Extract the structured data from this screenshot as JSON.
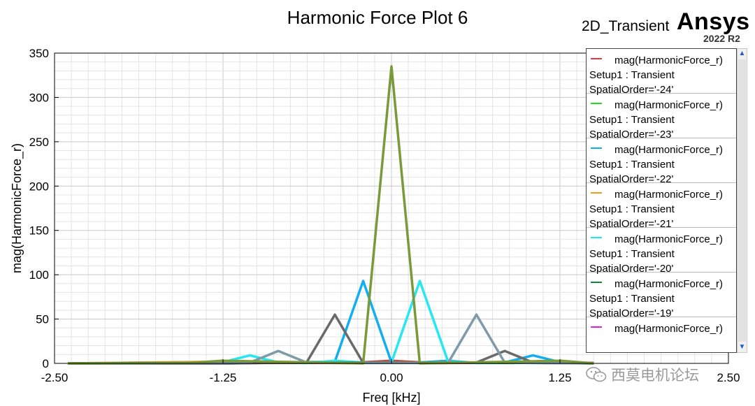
{
  "header": {
    "title": "Harmonic Force Plot 6",
    "subtitle": "2D_Transient",
    "brand": "Ansys",
    "version": "2022 R2"
  },
  "watermark": {
    "text": "西莫电机论坛"
  },
  "legend": {
    "entries": [
      {
        "line1": "mag(HarmonicForce_r)",
        "line2": "Setup1 : Transient",
        "line3": "SpatialOrder='-24'",
        "color": "#e8383d"
      },
      {
        "line1": "mag(HarmonicForce_r)",
        "line2": "Setup1 : Transient",
        "line3": "SpatialOrder='-23'",
        "color": "#22dd22"
      },
      {
        "line1": "mag(HarmonicForce_r)",
        "line2": "Setup1 : Transient",
        "line3": "SpatialOrder='-22'",
        "color": "#12aef2"
      },
      {
        "line1": "mag(HarmonicForce_r)",
        "line2": "Setup1 : Transient",
        "line3": "SpatialOrder='-21'",
        "color": "#f59b1c"
      },
      {
        "line1": "mag(HarmonicForce_r)",
        "line2": "Setup1 : Transient",
        "line3": "SpatialOrder='-20'",
        "color": "#25e8f2"
      },
      {
        "line1": "mag(HarmonicForce_r)",
        "line2": "Setup1 : Transient",
        "line3": "SpatialOrder='-19'",
        "color": "#0c8a3a"
      },
      {
        "line1": "mag(HarmonicForce_r)",
        "line2": "",
        "line3": "",
        "color": "#dd22dd"
      }
    ]
  },
  "chart_data": {
    "type": "line",
    "title": "Harmonic Force Plot 6",
    "xlabel": "Freq [kHz]",
    "ylabel": "mag(HarmonicForce_r)",
    "xlim": [
      -2.5,
      2.5
    ],
    "ylim": [
      0,
      350
    ],
    "xticks": [
      -2.5,
      -1.25,
      0.0,
      1.25,
      2.5
    ],
    "xtick_labels": [
      "-2.50",
      "-1.25",
      "0.00",
      "1.25",
      "2.50"
    ],
    "yticks": [
      0,
      50,
      100,
      150,
      200,
      250,
      300,
      350
    ],
    "ytick_labels": [
      "0",
      "50",
      "100",
      "150",
      "200",
      "250",
      "300",
      "350"
    ],
    "grid": true,
    "legend_position": "right",
    "series": [
      {
        "name": "SpatialOrder='-24'",
        "color": "#e8383d",
        "x": [
          -2.4,
          -2.1,
          -1.8,
          -1.5,
          -1.2,
          -0.9,
          -0.6,
          -0.3,
          0.0,
          0.3,
          0.6,
          0.9,
          1.2,
          1.5
        ],
        "y": [
          0,
          0.3,
          1,
          0.5,
          1.5,
          0.5,
          0.5,
          0.5,
          3,
          0.5,
          0.5,
          0.5,
          1.5,
          0.5
        ]
      },
      {
        "name": "SpatialOrder='-22'",
        "color": "#12aef2",
        "x": [
          -2.4,
          -1.2,
          -0.42,
          -0.21,
          0.0,
          0.21,
          0.42,
          0.63,
          0.84,
          1.05,
          1.26,
          1.5
        ],
        "y": [
          0,
          0,
          2,
          93,
          1,
          1,
          3,
          0.5,
          1,
          9,
          1,
          0
        ]
      },
      {
        "name": "SpatialOrder='-21'",
        "color": "#f59b1c",
        "x": [
          -2.4,
          -1.8,
          -1.2,
          -0.6,
          0.0,
          0.6,
          1.2,
          1.5
        ],
        "y": [
          0,
          1,
          2,
          1,
          1,
          1,
          1,
          0
        ]
      },
      {
        "name": "SpatialOrder='-20'",
        "color": "#25e8f2",
        "x": [
          -2.4,
          -1.26,
          -1.05,
          -0.84,
          -0.63,
          -0.42,
          -0.21,
          0.0,
          0.21,
          0.42,
          0.63,
          0.84,
          1.2,
          1.5
        ],
        "y": [
          0,
          1,
          9,
          1,
          0.5,
          3,
          1,
          1,
          93,
          2,
          0.5,
          0.5,
          0.5,
          0
        ]
      },
      {
        "name": "SpatialOrder='-19'",
        "color": "#0c8a3a",
        "x": [
          -2.4,
          -1.2,
          0.0,
          1.2,
          1.5
        ],
        "y": [
          0,
          0.5,
          1,
          0.5,
          0
        ]
      },
      {
        "name": "",
        "color": "#6a6a6a",
        "x": [
          -2.4,
          -1.2,
          -0.63,
          -0.42,
          -0.21,
          0.0,
          0.21,
          0.42,
          0.63,
          0.84,
          1.05,
          1.5
        ],
        "y": [
          0,
          0,
          1,
          55,
          0.5,
          0.5,
          0.5,
          0.5,
          1,
          14,
          1,
          0
        ]
      },
      {
        "name": "",
        "color": "#7f9aa8",
        "x": [
          -2.4,
          -1.05,
          -0.84,
          -0.63,
          -0.42,
          0.0,
          0.42,
          0.63,
          0.84,
          1.05,
          1.5
        ],
        "y": [
          0,
          1,
          14,
          1,
          0.5,
          0.5,
          0.5,
          55,
          1,
          0.5,
          0
        ]
      },
      {
        "name": "",
        "color": "#7a9a3a",
        "x": [
          -2.4,
          -1.8,
          -1.5,
          -1.26,
          -0.21,
          0.0,
          0.21,
          1.26,
          1.5
        ],
        "y": [
          0,
          0.5,
          0.5,
          3,
          0,
          335,
          0,
          3,
          0
        ]
      }
    ]
  }
}
